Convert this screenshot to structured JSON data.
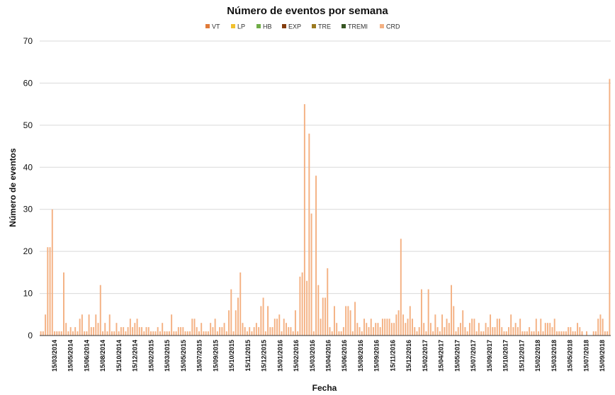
{
  "chart_data": {
    "type": "bar",
    "title": "Número de eventos por semana",
    "xlabel": "Fecha",
    "ylabel": "Número de eventos",
    "ylim": [
      0,
      70
    ],
    "yticks": [
      "0",
      "10",
      "20",
      "30",
      "40",
      "50",
      "60",
      "70"
    ],
    "grid": true,
    "legend_position": "top",
    "legend": [
      {
        "name": "VT",
        "color": "#e07b39"
      },
      {
        "name": "LP",
        "color": "#f2c12e"
      },
      {
        "name": "HB",
        "color": "#70ad47"
      },
      {
        "name": "EXP",
        "color": "#843c0c"
      },
      {
        "name": "TRE",
        "color": "#9c7a20"
      },
      {
        "name": "TREMI",
        "color": "#375623"
      },
      {
        "name": "CRD",
        "color": "#f4b183"
      }
    ],
    "bar_color": "#f4b183",
    "x_tick_labels": [
      "15/03/2014",
      "15/05/2014",
      "15/06/2014",
      "15/08/2014",
      "15/10/2014",
      "15/12/2014",
      "15/02/2015",
      "15/03/2015",
      "15/05/2015",
      "15/07/2015",
      "15/09/2015",
      "15/10/2015",
      "15/11/2015",
      "15/12/2015",
      "15/01/2016",
      "15/02/2016",
      "15/03/2016",
      "15/04/2016",
      "15/06/2016",
      "15/08/2016",
      "15/09/2016",
      "15/11/2016",
      "15/12/2016",
      "15/02/2017",
      "15/04/2017",
      "15/05/2017",
      "15/07/2017",
      "15/09/2017",
      "15/10/2017",
      "15/12/2017",
      "15/02/2018",
      "15/03/2018",
      "15/05/2018",
      "15/07/2018",
      "15/09/2018"
    ],
    "series": [
      {
        "name": "CRD",
        "values": [
          1,
          1,
          5,
          21,
          21,
          30,
          1,
          1,
          1,
          1,
          15,
          3,
          1,
          2,
          1,
          2,
          1,
          4,
          5,
          1,
          1,
          5,
          2,
          2,
          5,
          3,
          12,
          1,
          3,
          1,
          5,
          1,
          1,
          3,
          1,
          2,
          2,
          1,
          2,
          4,
          2,
          3,
          4,
          2,
          2,
          1,
          2,
          2,
          1,
          1,
          1,
          2,
          1,
          3,
          1,
          1,
          1,
          5,
          1,
          1,
          2,
          2,
          2,
          1,
          1,
          1,
          4,
          4,
          2,
          1,
          3,
          1,
          1,
          1,
          3,
          2,
          4,
          1,
          2,
          2,
          3,
          1,
          6,
          11,
          1,
          6,
          9,
          15,
          3,
          2,
          1,
          2,
          1,
          2,
          3,
          2,
          7,
          9,
          1,
          7,
          2,
          2,
          4,
          4,
          5,
          1,
          4,
          3,
          2,
          2,
          1,
          6,
          1,
          14,
          15,
          55,
          13,
          48,
          29,
          1,
          38,
          12,
          4,
          9,
          9,
          16,
          2,
          1,
          7,
          3,
          1,
          1,
          2,
          7,
          7,
          6,
          1,
          8,
          3,
          2,
          1,
          4,
          3,
          2,
          4,
          2,
          3,
          3,
          2,
          4,
          4,
          4,
          4,
          3,
          3,
          5,
          6,
          23,
          5,
          3,
          4,
          7,
          4,
          2,
          1,
          2,
          11,
          3,
          1,
          11,
          3,
          1,
          5,
          2,
          1,
          5,
          2,
          4,
          3,
          12,
          7,
          1,
          2,
          3,
          6,
          2,
          1,
          3,
          4,
          4,
          1,
          3,
          1,
          1,
          3,
          2,
          5,
          2,
          2,
          4,
          4,
          2,
          1,
          1,
          2,
          5,
          2,
          3,
          2,
          4,
          1,
          1,
          1,
          2,
          1,
          1,
          4,
          1,
          4,
          1,
          3,
          3,
          3,
          2,
          4,
          1,
          1,
          1,
          1,
          1,
          2,
          2,
          1,
          1,
          3,
          2,
          1,
          0,
          1,
          0,
          0,
          1,
          1,
          4,
          5,
          4,
          1,
          1,
          61
        ]
      }
    ]
  }
}
